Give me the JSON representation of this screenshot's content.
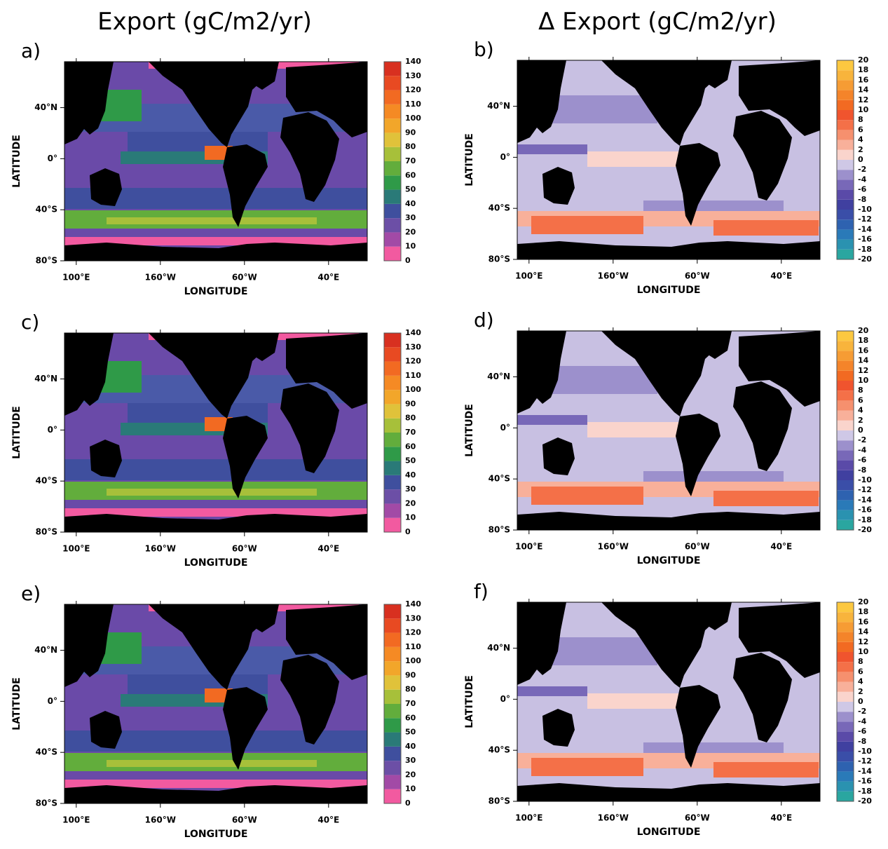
{
  "x_label": "LONGITUDE",
  "y_label": "LATITUDE",
  "xlim": [
    86,
    446
  ],
  "ylim": [
    -80,
    76
  ],
  "xticks": [
    {
      "value": 100,
      "label": "100°E"
    },
    {
      "value": 200,
      "label": "160°W"
    },
    {
      "value": 300,
      "label": "60°W"
    },
    {
      "value": 400,
      "label": "40°E"
    }
  ],
  "yticks": [
    {
      "value": 40,
      "label": "40°N"
    },
    {
      "value": 0,
      "label": "0°"
    },
    {
      "value": -40,
      "label": "40°S"
    },
    {
      "value": -80,
      "label": "80°S"
    }
  ],
  "columns": [
    {
      "title": "Export (gC/m2/yr)",
      "levels": [
        0,
        10,
        20,
        30,
        40,
        50,
        60,
        70,
        80,
        90,
        100,
        110,
        120,
        130,
        140
      ],
      "colors": [
        "#f25aa0",
        "#a24aa6",
        "#6c4fa6",
        "#3f4f9e",
        "#2a7a78",
        "#2f9a48",
        "#62ad3c",
        "#a7c03a",
        "#e0c23a",
        "#f2a62a",
        "#f58a24",
        "#f26a22",
        "#e84a22",
        "#d83020"
      ],
      "panels": [
        "a)",
        "c)",
        "e)"
      ]
    },
    {
      "title": "Δ Export (gC/m2/yr)",
      "levels": [
        -20,
        -18,
        -16,
        -14,
        -12,
        -10,
        -8,
        -6,
        -4,
        -2,
        0,
        2,
        4,
        6,
        8,
        10,
        12,
        14,
        16,
        18,
        20
      ],
      "colors": [
        "#2aa6a0",
        "#2a92b0",
        "#2a7ab8",
        "#2e62b0",
        "#3a4ea8",
        "#4040a0",
        "#5a4aa8",
        "#7868b8",
        "#9c90cc",
        "#cfc8e6",
        "#fad4cc",
        "#f8b09a",
        "#f6906e",
        "#f47048",
        "#f0542e",
        "#f26a22",
        "#f4842a",
        "#f69c34",
        "#f8b43c",
        "#fcc840"
      ],
      "panels": [
        "b)",
        "d)",
        "f)"
      ]
    }
  ]
}
